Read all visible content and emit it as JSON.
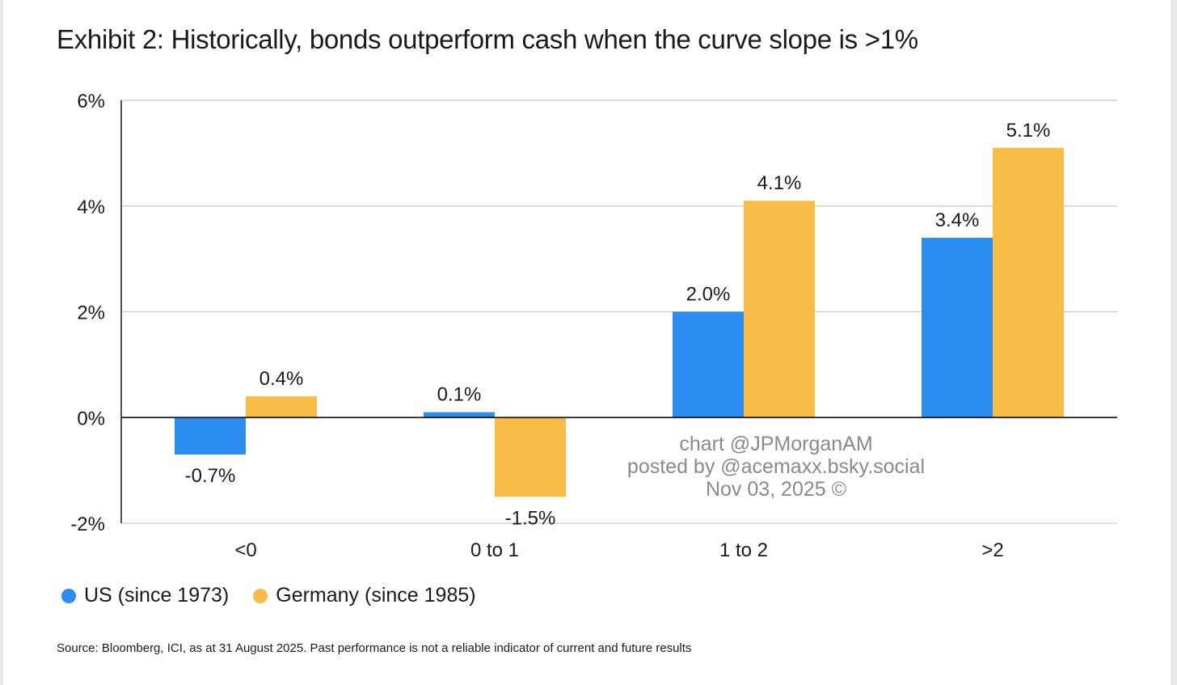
{
  "title": "Exhibit 2: Historically, bonds outperform cash when the curve slope is >1%",
  "source": "Source: Bloomberg, ICI, as at 31 August 2025. Past performance is not a reliable indicator of current and future results",
  "watermark": {
    "line1": "chart @JPMorganAM",
    "line2": "posted by @acemaxx.bsky.social",
    "line3": "Nov 03, 2025 ©"
  },
  "legend": [
    {
      "label": "US (since 1973)",
      "color": "#2b8def"
    },
    {
      "label": "Germany (since 1985)",
      "color": "#f9bc47"
    }
  ],
  "chart_data": {
    "type": "bar",
    "categories": [
      "<0",
      "0 to 1",
      "1 to 2",
      ">2"
    ],
    "series": [
      {
        "name": "US (since 1973)",
        "color": "#2b8def",
        "values": [
          -0.7,
          0.1,
          2.0,
          3.4
        ],
        "labels": [
          "-0.7%",
          "0.1%",
          "2.0%",
          "3.4%"
        ]
      },
      {
        "name": "Germany (since 1985)",
        "color": "#f9bc47",
        "values": [
          0.4,
          -1.5,
          4.1,
          5.1
        ],
        "labels": [
          "0.4%",
          "-1.5%",
          "4.1%",
          "5.1%"
        ]
      }
    ],
    "ylim": [
      -2,
      6
    ],
    "yticks": [
      -2,
      0,
      2,
      4,
      6
    ],
    "ytick_labels": [
      "-2%",
      "0%",
      "2%",
      "4%",
      "6%"
    ],
    "grid": true,
    "legend_position": "bottom-left"
  }
}
